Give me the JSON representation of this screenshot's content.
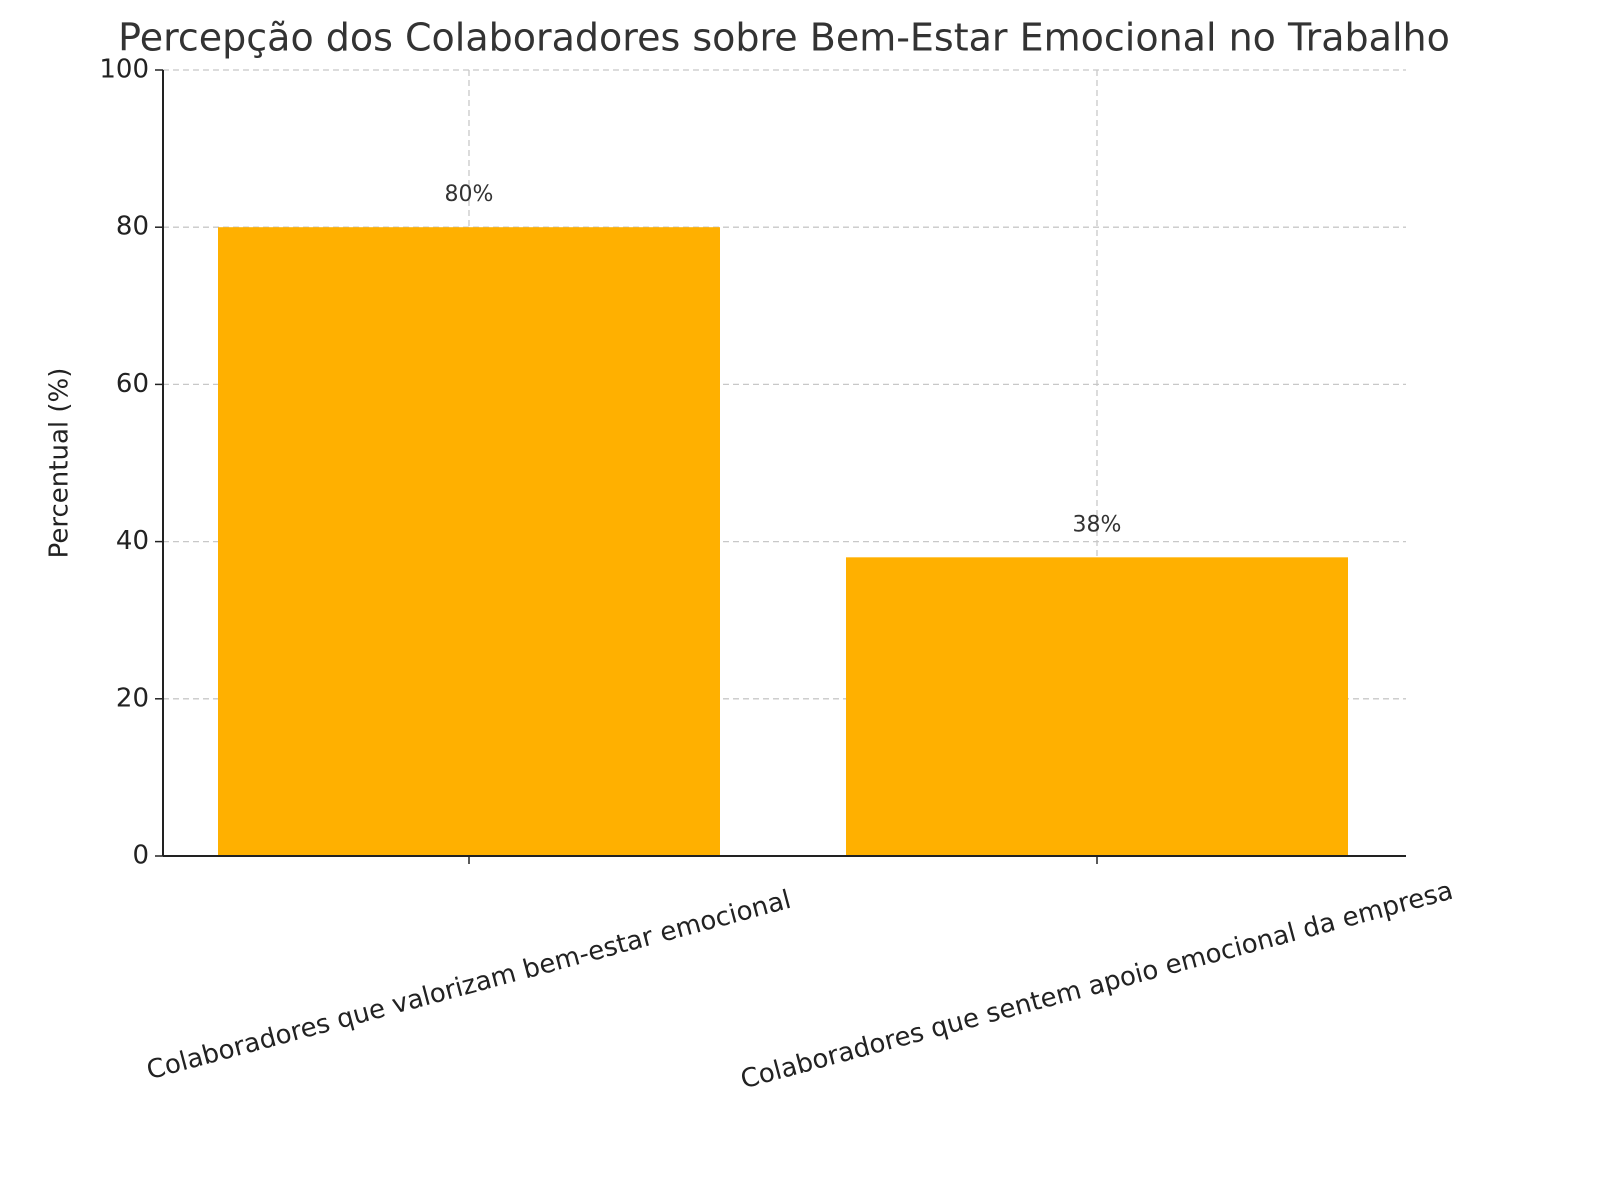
{
  "chart_data": {
    "type": "bar",
    "title": "Percepção dos Colaboradores sobre Bem-Estar Emocional no Trabalho",
    "y_label": "Percentual (%)",
    "categories": [
      "Colaboradores que valorizam bem-estar emocional",
      "Colaboradores que sentem apoio emocional da empresa"
    ],
    "values": [
      80,
      38
    ],
    "value_labels": [
      "80%",
      "38%"
    ],
    "color": "#ffb000",
    "ylim": [
      0,
      100
    ],
    "yticks": [
      0,
      20,
      40,
      60,
      80,
      100
    ],
    "grid": true
  }
}
